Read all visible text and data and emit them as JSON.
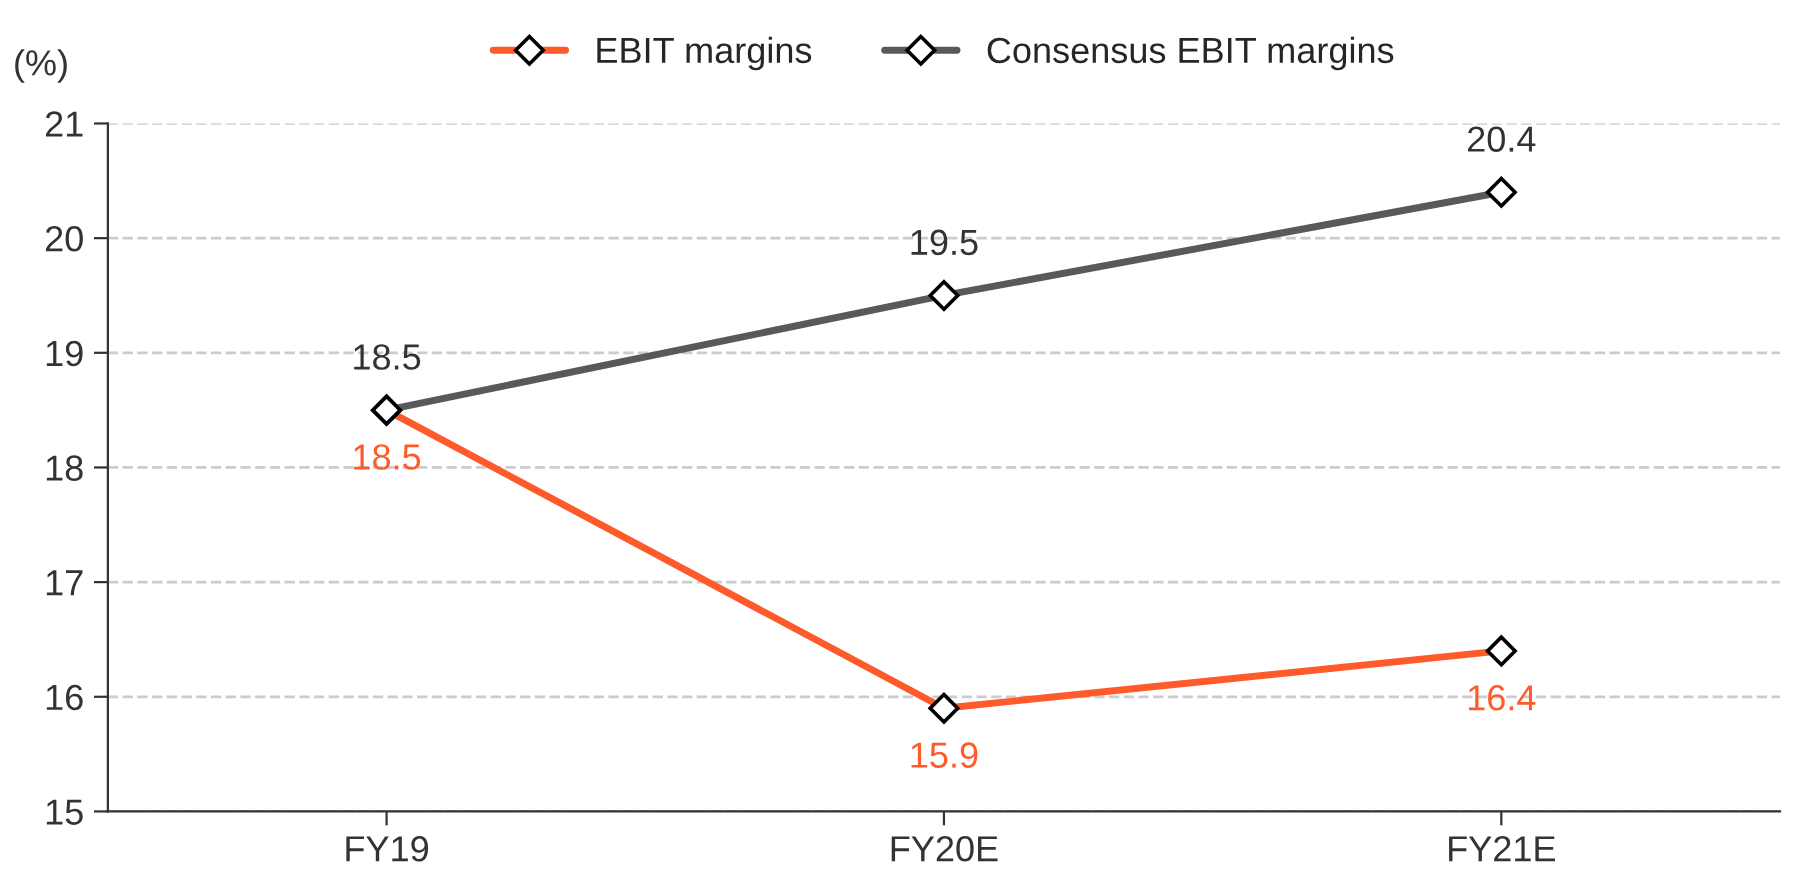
{
  "chart_data": {
    "type": "line",
    "ylabel": "(%)",
    "categories": [
      "FY19",
      "FY20E",
      "FY21E"
    ],
    "series": [
      {
        "name": "EBIT margins",
        "color": "#fe5a2a",
        "values": [
          18.5,
          15.9,
          16.4
        ]
      },
      {
        "name": "Consensus EBIT margins",
        "color": "#595959",
        "values": [
          18.5,
          19.5,
          20.4
        ]
      }
    ],
    "ylim": [
      15,
      21
    ],
    "yticks": [
      15,
      16,
      17,
      18,
      19,
      20,
      21
    ],
    "grid": "y",
    "legend": "top",
    "marker": "diamond",
    "line_style": "solid",
    "data_labels": true
  }
}
